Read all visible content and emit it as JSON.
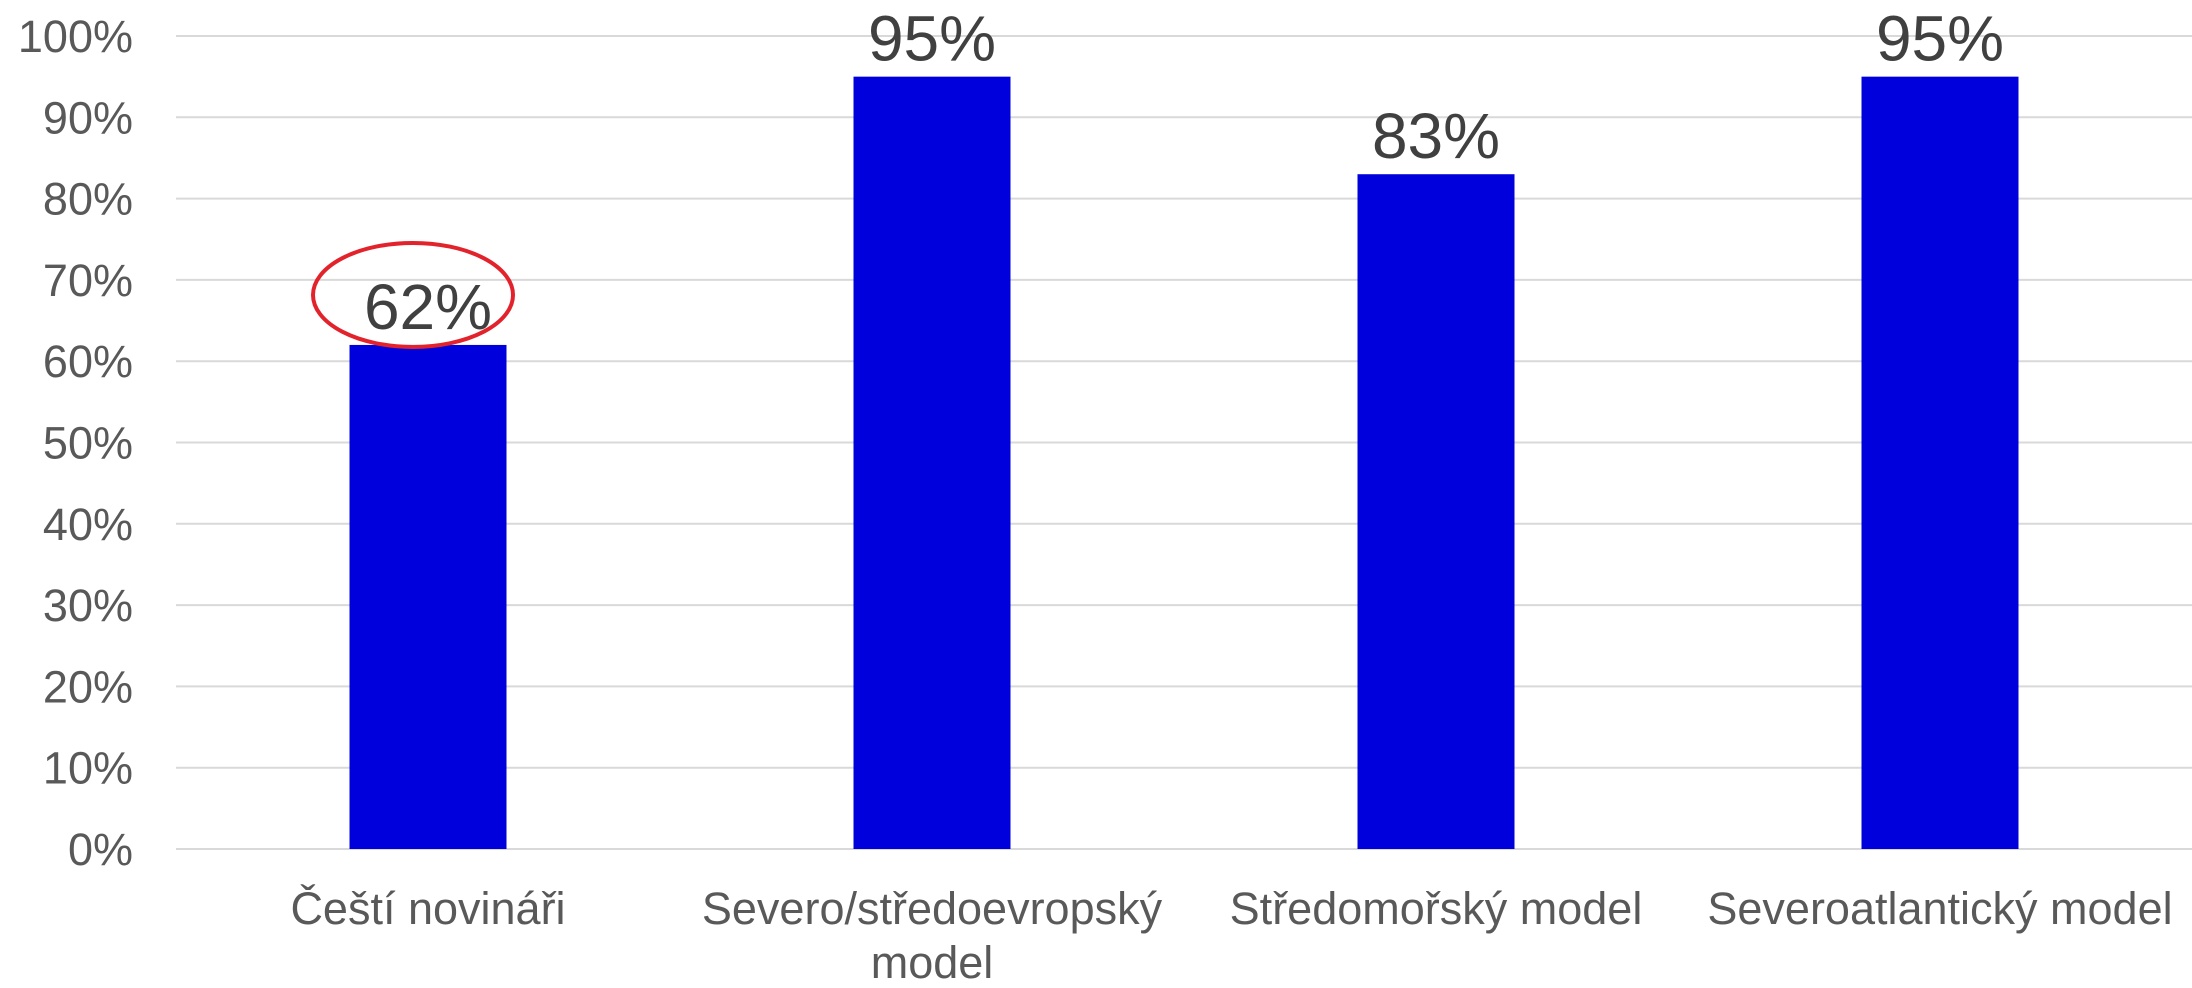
{
  "chart_data": {
    "type": "bar",
    "categories": [
      [
        "Čeští novináři"
      ],
      [
        "Severo/středoevropský",
        "model"
      ],
      [
        "Středomořský model"
      ],
      [
        "Severoatlantický model"
      ]
    ],
    "values": [
      62,
      95,
      83,
      95
    ],
    "data_labels": [
      "62%",
      "95%",
      "83%",
      "95%"
    ],
    "y_ticks": [
      "0%",
      "10%",
      "20%",
      "30%",
      "40%",
      "50%",
      "60%",
      "70%",
      "80%",
      "90%",
      "100%"
    ],
    "ylim": [
      0,
      100
    ],
    "grid": true,
    "legend": "none",
    "highlighted_index": 0,
    "colors": {
      "bar": "#0000dd",
      "grid": "#d9d9d9",
      "text": "#595959",
      "data_label": "#404040",
      "highlight": "#e3232c"
    }
  }
}
